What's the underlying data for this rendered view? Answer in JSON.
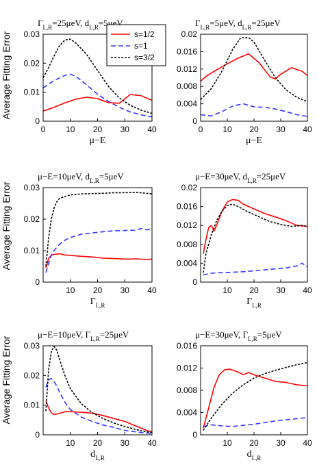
{
  "colors": {
    "s12": "#ff0000",
    "s1": "#3333ff",
    "s32": "#000000"
  },
  "legend": {
    "entries": [
      "s=1/2",
      "s=1",
      "s=3/2"
    ],
    "placement": "top-right of first panel"
  },
  "ylabel": "Average Fitting Error",
  "chart_data": [
    {
      "type": "line",
      "title": "Γ_{L,R}=25μeV, d_{L,R}=5μeV",
      "xlabel": "μ−E",
      "xlim": [
        0,
        40
      ],
      "ylim": [
        0,
        0.03
      ],
      "xticks": [
        "0",
        "10",
        "20",
        "30",
        "40"
      ],
      "yticks": [
        "0",
        "0.01",
        "0.02",
        "0.03"
      ],
      "series": [
        {
          "name": "s=1/2",
          "x": [
            0,
            4,
            8,
            12,
            16,
            20,
            24,
            28,
            32,
            36,
            40
          ],
          "values": [
            0.0035,
            0.0048,
            0.0063,
            0.0076,
            0.0083,
            0.0078,
            0.0064,
            0.0062,
            0.0092,
            0.0088,
            0.0072
          ]
        },
        {
          "name": "s=1",
          "x": [
            0,
            4,
            8,
            10,
            12,
            16,
            20,
            24,
            28,
            32,
            36,
            40
          ],
          "values": [
            0.0115,
            0.014,
            0.0158,
            0.0162,
            0.0155,
            0.0125,
            0.0093,
            0.0068,
            0.0048,
            0.0032,
            0.0022,
            0.0015
          ]
        },
        {
          "name": "s=3/2",
          "x": [
            0,
            2,
            4,
            6,
            8,
            10,
            12,
            16,
            20,
            24,
            28,
            32,
            36,
            40
          ],
          "values": [
            0.015,
            0.0185,
            0.0225,
            0.026,
            0.028,
            0.0283,
            0.027,
            0.023,
            0.0175,
            0.012,
            0.008,
            0.0055,
            0.0038,
            0.0027
          ]
        }
      ]
    },
    {
      "type": "line",
      "title": "Γ_{L,R}=5μeV, d_{L,R}=25μeV",
      "xlabel": "μ−E",
      "xlim": [
        0,
        40
      ],
      "ylim": [
        0,
        0.02
      ],
      "xticks": [
        "0",
        "10",
        "20",
        "30",
        "40"
      ],
      "yticks": [
        "0",
        "0.004",
        "0.008",
        "0.012",
        "0.016",
        "0.02"
      ],
      "series": [
        {
          "name": "s=1/2",
          "x": [
            0,
            2,
            6,
            10,
            14,
            18,
            22,
            26,
            28,
            30,
            34,
            38,
            40
          ],
          "values": [
            0.0092,
            0.0103,
            0.0118,
            0.0132,
            0.0145,
            0.0155,
            0.0134,
            0.0102,
            0.0097,
            0.0108,
            0.0123,
            0.0115,
            0.0105
          ]
        },
        {
          "name": "s=1",
          "x": [
            0,
            4,
            8,
            12,
            16,
            20,
            24,
            28,
            32,
            36,
            40
          ],
          "values": [
            0.0015,
            0.0012,
            0.0022,
            0.0035,
            0.004,
            0.0033,
            0.0032,
            0.0028,
            0.0022,
            0.0015,
            0.0011
          ]
        },
        {
          "name": "s=3/2",
          "x": [
            0,
            4,
            8,
            12,
            15,
            18,
            20,
            24,
            28,
            32,
            36,
            40
          ],
          "values": [
            0.005,
            0.0075,
            0.0115,
            0.0165,
            0.0192,
            0.0192,
            0.0182,
            0.014,
            0.01,
            0.0072,
            0.0055,
            0.0045
          ]
        }
      ]
    },
    {
      "type": "line",
      "title": "μ−E=10μeV, d_{L,R}=5μeV",
      "xlabel": "Γ_{L,R}",
      "xlim": [
        0,
        40
      ],
      "ylim": [
        0,
        0.03
      ],
      "xticks": [
        "10",
        "20",
        "30",
        "40"
      ],
      "yticks": [
        "0",
        "0.01",
        "0.02",
        "0.03"
      ],
      "series": [
        {
          "name": "s=1/2",
          "x": [
            1,
            2,
            3,
            4,
            6,
            8,
            10,
            14,
            18,
            22,
            26,
            30,
            34,
            38,
            40
          ],
          "values": [
            0.0045,
            0.0075,
            0.0085,
            0.0088,
            0.009,
            0.0086,
            0.0085,
            0.0082,
            0.008,
            0.0076,
            0.0075,
            0.0073,
            0.0074,
            0.0072,
            0.0073
          ]
        },
        {
          "name": "s=1",
          "x": [
            1,
            2,
            3,
            4,
            6,
            8,
            10,
            14,
            18,
            22,
            26,
            30,
            34,
            36,
            38,
            40
          ],
          "values": [
            0.003,
            0.006,
            0.0085,
            0.01,
            0.012,
            0.0133,
            0.0142,
            0.0152,
            0.0156,
            0.016,
            0.0163,
            0.0164,
            0.0165,
            0.017,
            0.0166,
            0.0168
          ]
        },
        {
          "name": "s=3/2",
          "x": [
            1,
            2,
            3,
            4,
            5,
            6,
            8,
            10,
            14,
            18,
            22,
            26,
            30,
            34,
            38,
            40
          ],
          "values": [
            0.005,
            0.014,
            0.02,
            0.0235,
            0.0255,
            0.0265,
            0.0272,
            0.0277,
            0.028,
            0.0281,
            0.0282,
            0.0284,
            0.0284,
            0.0285,
            0.0282,
            0.028
          ]
        }
      ]
    },
    {
      "type": "line",
      "title": "μ−E=30μeV, d_{L,R}=25μeV",
      "xlabel": "Γ_{L,R}",
      "xlim": [
        0,
        40
      ],
      "ylim": [
        0,
        0.02
      ],
      "xticks": [
        "10",
        "20",
        "30",
        "40"
      ],
      "yticks": [
        "0",
        "0.004",
        "0.008",
        "0.012",
        "0.016",
        "0.02"
      ],
      "series": [
        {
          "name": "s=1/2",
          "x": [
            1,
            2,
            3,
            4,
            5,
            6,
            8,
            10,
            12,
            14,
            16,
            20,
            24,
            28,
            32,
            36,
            40
          ],
          "values": [
            0.006,
            0.009,
            0.0115,
            0.012,
            0.0108,
            0.012,
            0.015,
            0.017,
            0.0175,
            0.0173,
            0.0165,
            0.0155,
            0.0145,
            0.0138,
            0.013,
            0.012,
            0.0118
          ]
        },
        {
          "name": "s=1",
          "x": [
            1,
            4,
            8,
            12,
            16,
            20,
            24,
            28,
            32,
            36,
            38,
            40
          ],
          "values": [
            0.0015,
            0.0019,
            0.002,
            0.0021,
            0.0022,
            0.0024,
            0.0026,
            0.0028,
            0.003,
            0.0034,
            0.004,
            0.0032
          ]
        },
        {
          "name": "s=3/2",
          "x": [
            1,
            2,
            4,
            6,
            8,
            10,
            12,
            14,
            18,
            22,
            26,
            30,
            34,
            38,
            40
          ],
          "values": [
            0.002,
            0.006,
            0.01,
            0.013,
            0.015,
            0.0162,
            0.0165,
            0.016,
            0.0148,
            0.0138,
            0.0128,
            0.0122,
            0.0118,
            0.012,
            0.0118
          ]
        }
      ]
    },
    {
      "type": "line",
      "title": "μ−E=10μeV, Γ_{L,R}=25μeV",
      "xlabel": "d_{L,R}",
      "xlim": [
        0,
        40
      ],
      "ylim": [
        0,
        0.03
      ],
      "xticks": [
        "10",
        "20",
        "30",
        "40"
      ],
      "yticks": [
        "0",
        "0.01",
        "0.02",
        "0.03"
      ],
      "series": [
        {
          "name": "s=1/2",
          "x": [
            1,
            2,
            3,
            4,
            6,
            8,
            10,
            14,
            18,
            22,
            26,
            30,
            34,
            38,
            40
          ],
          "values": [
            0.0115,
            0.009,
            0.0075,
            0.0068,
            0.0072,
            0.0078,
            0.0078,
            0.0076,
            0.0073,
            0.0065,
            0.0055,
            0.0045,
            0.003,
            0.0015,
            0.001
          ]
        },
        {
          "name": "s=1",
          "x": [
            1,
            2,
            3,
            4,
            5,
            6,
            8,
            10,
            14,
            18,
            22,
            26,
            30,
            34,
            38,
            40
          ],
          "values": [
            0.016,
            0.0185,
            0.019,
            0.018,
            0.0165,
            0.0145,
            0.011,
            0.0085,
            0.006,
            0.0045,
            0.0033,
            0.0025,
            0.0015,
            0.001,
            0.0006,
            0.0005
          ]
        },
        {
          "name": "s=3/2",
          "x": [
            1,
            2,
            3,
            4,
            5,
            6,
            8,
            10,
            14,
            18,
            22,
            26,
            30,
            34,
            38,
            40
          ],
          "values": [
            0.008,
            0.022,
            0.028,
            0.0298,
            0.0285,
            0.0255,
            0.02,
            0.0155,
            0.0105,
            0.0075,
            0.0055,
            0.004,
            0.0028,
            0.0018,
            0.001,
            0.0008
          ]
        }
      ]
    },
    {
      "type": "line",
      "title": "μ−E=30μeV, Γ_{L,R}=5μeV",
      "xlabel": "d_{L,R}",
      "xlim": [
        0,
        40
      ],
      "ylim": [
        0,
        0.016
      ],
      "xticks": [
        "10",
        "20",
        "30",
        "40"
      ],
      "yticks": [
        "0",
        "0.004",
        "0.008",
        "0.012",
        "0.016"
      ],
      "series": [
        {
          "name": "s=1/2",
          "x": [
            1,
            3,
            5,
            7,
            9,
            11,
            14,
            16,
            18,
            20,
            24,
            28,
            32,
            36,
            40
          ],
          "values": [
            0.0012,
            0.0048,
            0.0085,
            0.0108,
            0.0117,
            0.0118,
            0.0113,
            0.0108,
            0.0112,
            0.0108,
            0.0102,
            0.0096,
            0.0094,
            0.009,
            0.0088
          ]
        },
        {
          "name": "s=1",
          "x": [
            1,
            4,
            8,
            12,
            16,
            20,
            24,
            28,
            32,
            36,
            40
          ],
          "values": [
            0.0015,
            0.0018,
            0.0016,
            0.0015,
            0.0017,
            0.0019,
            0.0022,
            0.0025,
            0.0027,
            0.0029,
            0.0031
          ]
        },
        {
          "name": "s=3/2",
          "x": [
            1,
            4,
            8,
            12,
            16,
            20,
            24,
            28,
            32,
            36,
            40
          ],
          "values": [
            0.0008,
            0.003,
            0.0055,
            0.0075,
            0.009,
            0.0102,
            0.011,
            0.0116,
            0.0121,
            0.0126,
            0.013
          ]
        }
      ]
    }
  ]
}
